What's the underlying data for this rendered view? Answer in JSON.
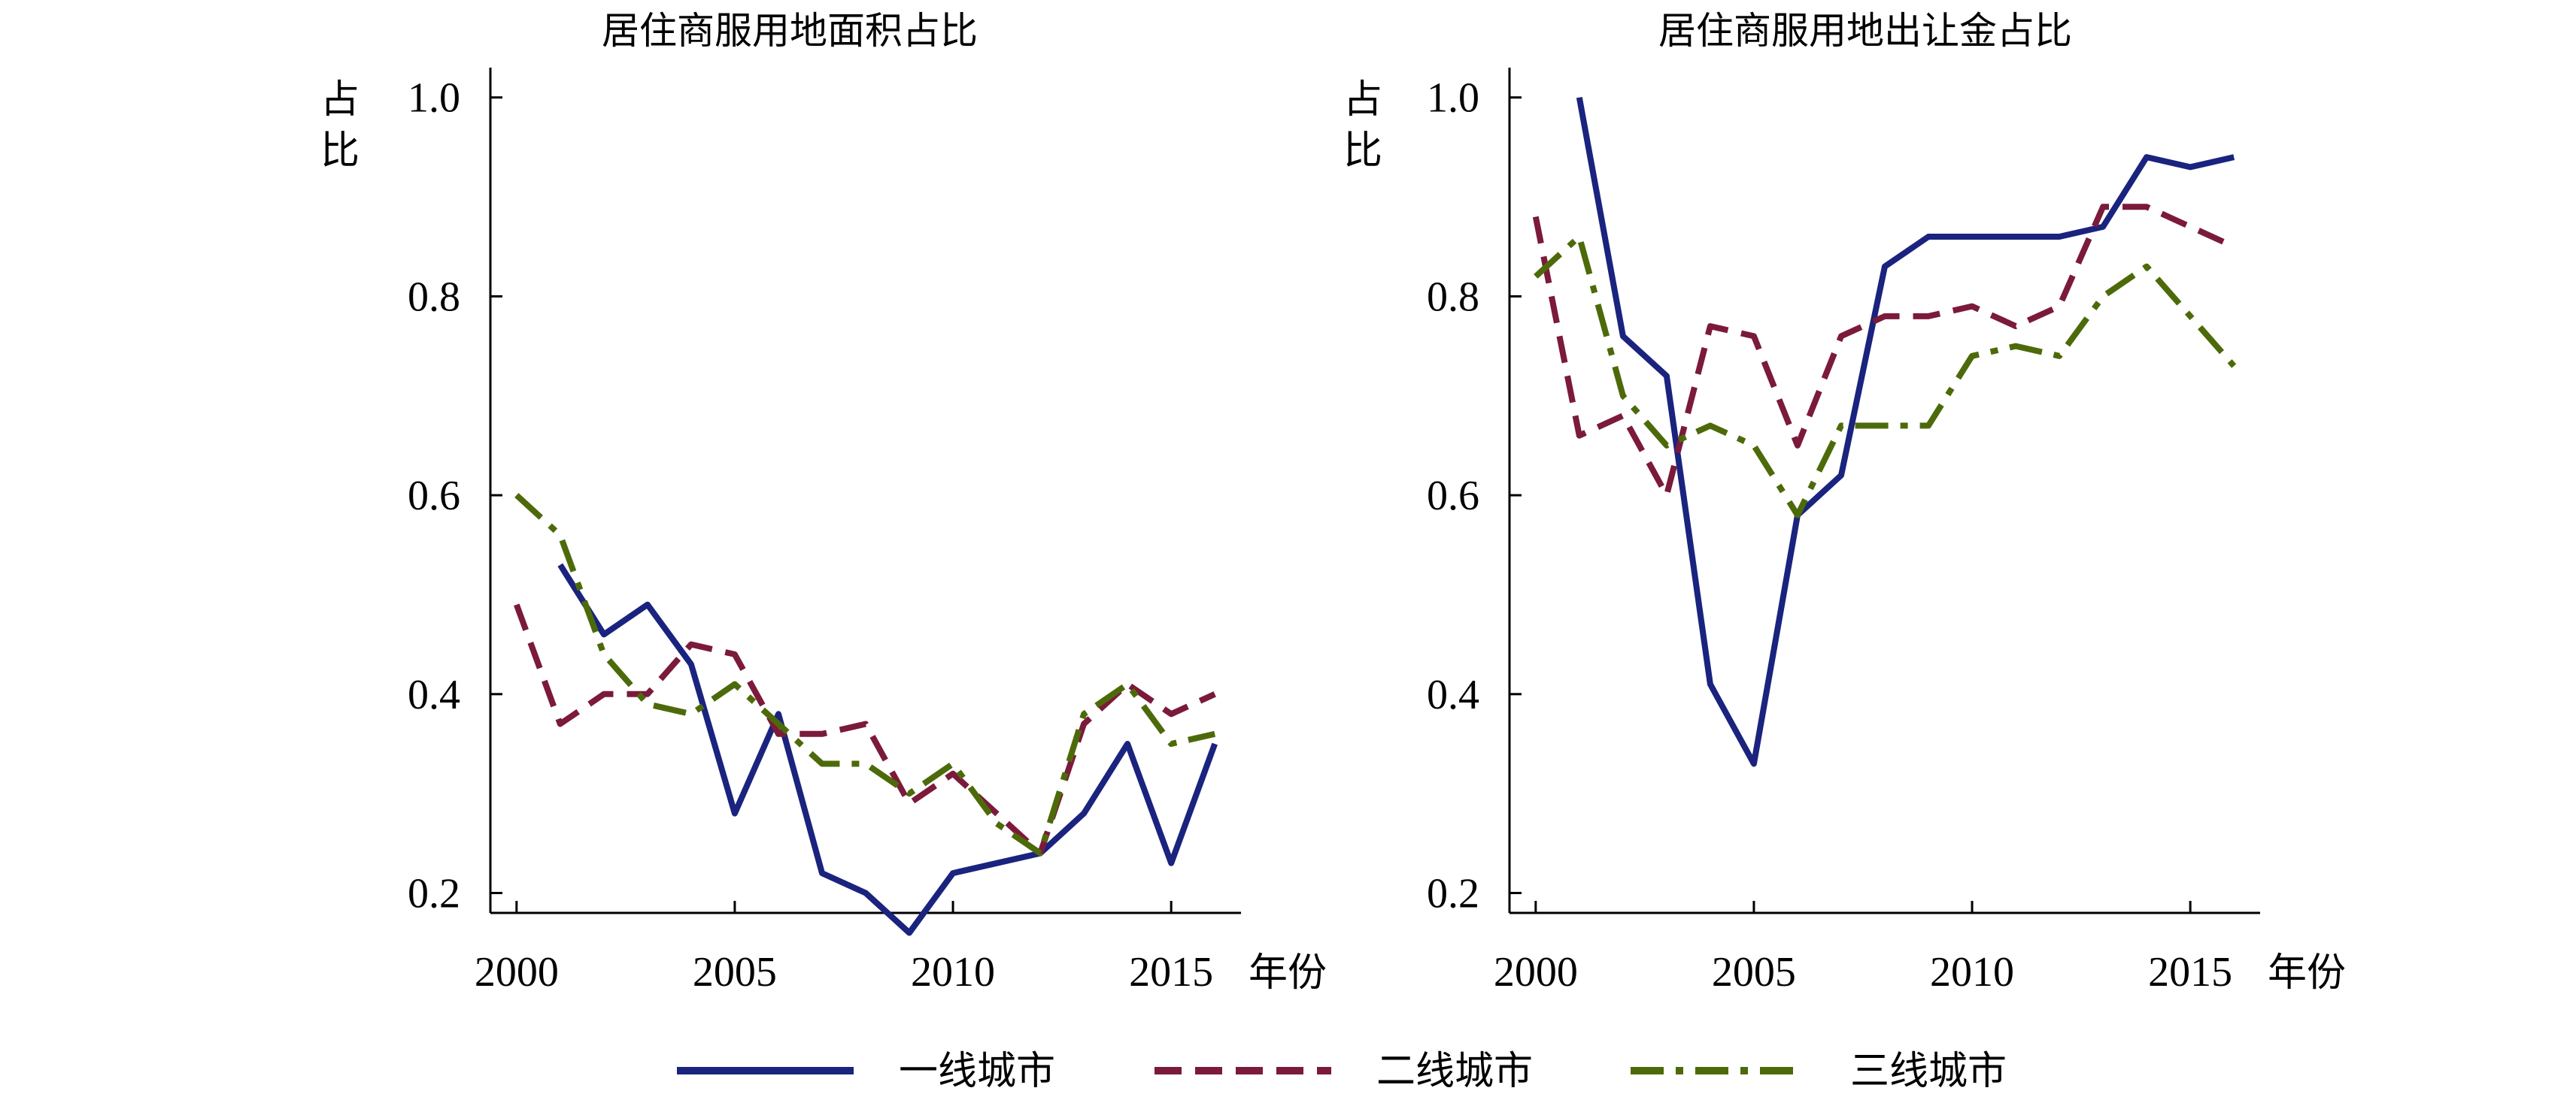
{
  "legend": {
    "items": [
      {
        "label": "一线城市",
        "color": "#1a237e",
        "dash": "solid"
      },
      {
        "label": "二线城市",
        "color": "#7b1a3a",
        "dash": "dashed"
      },
      {
        "label": "三线城市",
        "color": "#4d6a0a",
        "dash": "dashdot"
      }
    ]
  },
  "chart_data": [
    {
      "type": "line",
      "title": "居住商服用地面积占比",
      "ylabel": "占比",
      "xlabel": "年份",
      "xlim": [
        1999.4,
        2016.6
      ],
      "ylim": [
        0.18,
        1.03
      ],
      "xticks": [
        2000,
        2005,
        2010,
        2015
      ],
      "yticks": [
        0.2,
        0.4,
        0.6,
        0.8,
        1.0
      ],
      "ytick_labels": [
        "0.2",
        "0.4",
        "0.6",
        "0.8",
        "1.0"
      ],
      "series": [
        {
          "name": "一线城市",
          "x": [
            2001,
            2002,
            2003,
            2004,
            2005,
            2006,
            2007,
            2008,
            2009,
            2010,
            2011,
            2012,
            2013,
            2014,
            2015,
            2016
          ],
          "values": [
            0.53,
            0.46,
            0.49,
            0.43,
            0.28,
            0.38,
            0.22,
            0.2,
            0.16,
            0.22,
            0.23,
            0.24,
            0.28,
            0.35,
            0.23,
            0.35
          ]
        },
        {
          "name": "二线城市",
          "x": [
            2000,
            2001,
            2002,
            2003,
            2004,
            2005,
            2006,
            2007,
            2008,
            2009,
            2010,
            2011,
            2012,
            2013,
            2014,
            2015,
            2016
          ],
          "values": [
            0.49,
            0.37,
            0.4,
            0.4,
            0.45,
            0.44,
            0.36,
            0.36,
            0.37,
            0.29,
            0.32,
            0.28,
            0.24,
            0.37,
            0.41,
            0.38,
            0.4
          ]
        },
        {
          "name": "三线城市",
          "x": [
            2000,
            2001,
            2002,
            2003,
            2004,
            2005,
            2006,
            2007,
            2008,
            2009,
            2010,
            2011,
            2012,
            2013,
            2014,
            2015,
            2016
          ],
          "values": [
            0.6,
            0.56,
            0.44,
            0.39,
            0.38,
            0.41,
            0.37,
            0.33,
            0.33,
            0.3,
            0.33,
            0.27,
            0.24,
            0.38,
            0.41,
            0.35,
            0.36
          ]
        }
      ]
    },
    {
      "type": "line",
      "title": "居住商服用地出让金占比",
      "ylabel": "占比",
      "xlabel": "年份",
      "xlim": [
        1999.4,
        2016.6
      ],
      "ylim": [
        0.18,
        1.03
      ],
      "xticks": [
        2000,
        2005,
        2010,
        2015
      ],
      "yticks": [
        0.2,
        0.4,
        0.6,
        0.8,
        1.0
      ],
      "ytick_labels": [
        "0.2",
        "0.4",
        "0.6",
        "0.8",
        "1.0"
      ],
      "series": [
        {
          "name": "一线城市",
          "x": [
            2001,
            2002,
            2003,
            2004,
            2005,
            2006,
            2007,
            2008,
            2009,
            2010,
            2011,
            2012,
            2013,
            2014,
            2015,
            2016
          ],
          "values": [
            1.0,
            0.76,
            0.72,
            0.41,
            0.33,
            0.58,
            0.62,
            0.83,
            0.86,
            0.86,
            0.86,
            0.86,
            0.87,
            0.94,
            0.93,
            0.94
          ]
        },
        {
          "name": "二线城市",
          "x": [
            2000,
            2001,
            2002,
            2003,
            2004,
            2005,
            2006,
            2007,
            2008,
            2009,
            2010,
            2011,
            2012,
            2013,
            2014,
            2015,
            2016
          ],
          "values": [
            0.88,
            0.66,
            0.68,
            0.6,
            0.77,
            0.76,
            0.65,
            0.76,
            0.78,
            0.78,
            0.79,
            0.77,
            0.79,
            0.89,
            0.89,
            0.87,
            0.85
          ]
        },
        {
          "name": "三线城市",
          "x": [
            2000,
            2001,
            2002,
            2003,
            2004,
            2005,
            2006,
            2007,
            2008,
            2009,
            2010,
            2011,
            2012,
            2013,
            2014,
            2015,
            2016
          ],
          "values": [
            0.82,
            0.86,
            0.7,
            0.65,
            0.67,
            0.65,
            0.58,
            0.67,
            0.67,
            0.67,
            0.74,
            0.75,
            0.74,
            0.8,
            0.83,
            0.78,
            0.73
          ]
        }
      ]
    }
  ]
}
